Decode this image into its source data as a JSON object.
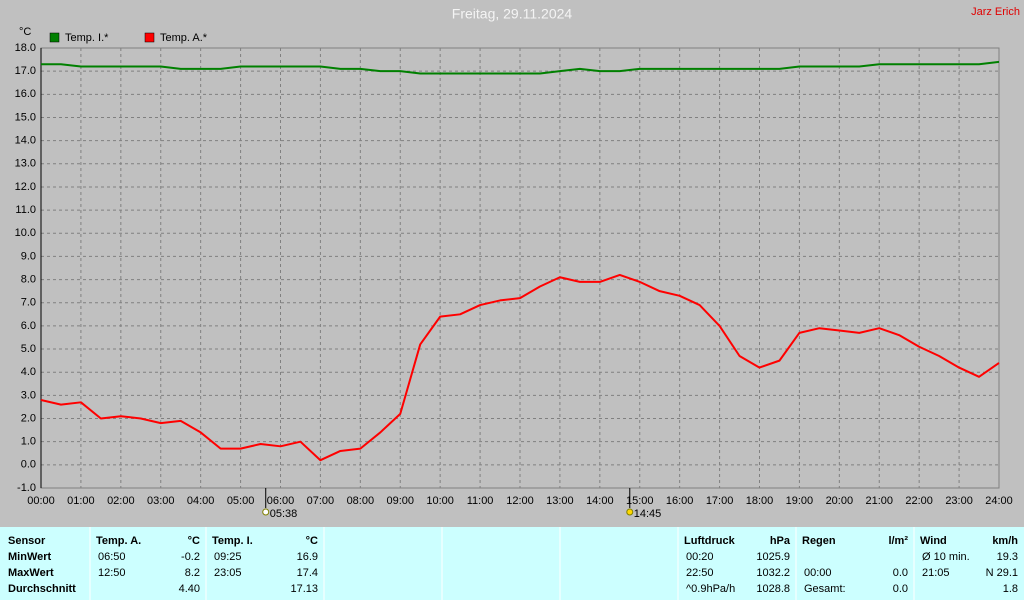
{
  "chart_data": {
    "type": "line",
    "title": "Freitag, 29.11.2024",
    "author": "Jarz Erich",
    "y_unit": "°C",
    "x": [
      0,
      0.5,
      1,
      1.5,
      2,
      2.5,
      3,
      3.5,
      4,
      4.5,
      5,
      5.5,
      6,
      6.5,
      7,
      7.5,
      8,
      8.5,
      9,
      9.5,
      10,
      10.5,
      11,
      11.5,
      12,
      12.5,
      13,
      13.5,
      14,
      14.5,
      15,
      15.5,
      16,
      16.5,
      17,
      17.5,
      18,
      18.5,
      19,
      19.5,
      20,
      20.5,
      21,
      21.5,
      22,
      22.5,
      23,
      23.5,
      24
    ],
    "series": [
      {
        "name": "Temp. I.*",
        "color": "#008000",
        "values": [
          17.3,
          17.3,
          17.2,
          17.2,
          17.2,
          17.2,
          17.2,
          17.1,
          17.1,
          17.1,
          17.2,
          17.2,
          17.2,
          17.2,
          17.2,
          17.1,
          17.1,
          17.0,
          17.0,
          16.9,
          16.9,
          16.9,
          16.9,
          16.9,
          16.9,
          16.9,
          17.0,
          17.1,
          17.0,
          17.0,
          17.1,
          17.1,
          17.1,
          17.1,
          17.1,
          17.1,
          17.1,
          17.1,
          17.2,
          17.2,
          17.2,
          17.2,
          17.3,
          17.3,
          17.3,
          17.3,
          17.3,
          17.3,
          17.4
        ]
      },
      {
        "name": "Temp. A.*",
        "color": "#ff0000",
        "values": [
          2.8,
          2.6,
          2.7,
          2.0,
          2.1,
          2.0,
          1.8,
          1.9,
          1.4,
          0.7,
          0.7,
          0.9,
          0.8,
          1.0,
          0.2,
          0.6,
          0.7,
          1.4,
          2.2,
          5.2,
          6.4,
          6.5,
          6.9,
          7.1,
          7.2,
          7.7,
          8.1,
          7.9,
          7.9,
          8.2,
          7.9,
          7.5,
          7.3,
          6.9,
          6.0,
          4.7,
          4.2,
          4.5,
          5.7,
          5.9,
          5.8,
          5.7,
          5.9,
          5.6,
          5.1,
          4.7,
          4.2,
          3.8,
          4.4
        ]
      }
    ],
    "xlim": [
      0,
      24
    ],
    "ylim": [
      -1,
      18
    ],
    "xticks": [
      {
        "value": 0,
        "label": "00:00"
      },
      {
        "value": 1,
        "label": "01:00"
      },
      {
        "value": 2,
        "label": "02:00"
      },
      {
        "value": 3,
        "label": "03:00"
      },
      {
        "value": 4,
        "label": "04:00"
      },
      {
        "value": 5,
        "label": "05:00"
      },
      {
        "value": 6,
        "label": "06:00"
      },
      {
        "value": 7,
        "label": "07:00"
      },
      {
        "value": 8,
        "label": "08:00"
      },
      {
        "value": 9,
        "label": "09:00"
      },
      {
        "value": 10,
        "label": "10:00"
      },
      {
        "value": 11,
        "label": "11:00"
      },
      {
        "value": 12,
        "label": "12:00"
      },
      {
        "value": 13,
        "label": "13:00"
      },
      {
        "value": 14,
        "label": "14:00"
      },
      {
        "value": 15,
        "label": "15:00"
      },
      {
        "value": 16,
        "label": "16:00"
      },
      {
        "value": 17,
        "label": "17:00"
      },
      {
        "value": 18,
        "label": "18:00"
      },
      {
        "value": 19,
        "label": "19:00"
      },
      {
        "value": 20,
        "label": "20:00"
      },
      {
        "value": 21,
        "label": "21:00"
      },
      {
        "value": 22,
        "label": "22:00"
      },
      {
        "value": 23,
        "label": "23:00"
      },
      {
        "value": 24,
        "label": "24:00"
      }
    ],
    "yticks": [
      {
        "value": -1,
        "label": "-1.0"
      },
      {
        "value": 0,
        "label": "0.0"
      },
      {
        "value": 1,
        "label": "1.0"
      },
      {
        "value": 2,
        "label": "2.0"
      },
      {
        "value": 3,
        "label": "3.0"
      },
      {
        "value": 4,
        "label": "4.0"
      },
      {
        "value": 5,
        "label": "5.0"
      },
      {
        "value": 6,
        "label": "6.0"
      },
      {
        "value": 7,
        "label": "7.0"
      },
      {
        "value": 8,
        "label": "8.0"
      },
      {
        "value": 9,
        "label": "9.0"
      },
      {
        "value": 10,
        "label": "10.0"
      },
      {
        "value": 11,
        "label": "11.0"
      },
      {
        "value": 12,
        "label": "12.0"
      },
      {
        "value": 13,
        "label": "13.0"
      },
      {
        "value": 14,
        "label": "14.0"
      },
      {
        "value": 15,
        "label": "15.0"
      },
      {
        "value": 16,
        "label": "16.0"
      },
      {
        "value": 17,
        "label": "17.0"
      },
      {
        "value": 18,
        "label": "18.0"
      }
    ],
    "grid": true,
    "annotations": [
      {
        "x": 5.63,
        "label": "05:38"
      },
      {
        "x": 14.75,
        "label": "14:45"
      }
    ]
  },
  "stats": {
    "labels": [
      "Sensor",
      "MinWert",
      "MaxWert",
      "Durchschnitt"
    ],
    "sections": [
      {
        "title": "Temp. A.",
        "unit": "°C",
        "rows": [
          [
            "06:50",
            "-0.2"
          ],
          [
            "12:50",
            "8.2"
          ],
          [
            null,
            "4.40"
          ]
        ]
      },
      {
        "title": "Temp. I.",
        "unit": "°C",
        "rows": [
          [
            "09:25",
            "16.9"
          ],
          [
            "23:05",
            "17.4"
          ],
          [
            null,
            "17.13"
          ]
        ]
      },
      {
        "title": "Luftdruck",
        "unit": "hPa",
        "rows": [
          [
            "00:20",
            "1025.9"
          ],
          [
            "22:50",
            "1032.2"
          ],
          [
            "^0.9hPa/h",
            "1028.8"
          ]
        ]
      },
      {
        "title": "Regen",
        "unit": "l/m²",
        "rows": [
          [
            null,
            null
          ],
          [
            "00:00",
            "0.0"
          ],
          [
            "Gesamt:",
            "0.0"
          ]
        ]
      },
      {
        "title": "Wind",
        "unit": "km/h",
        "rows": [
          [
            "Ø 10 min.",
            "19.3"
          ],
          [
            "21:05",
            "N 29.1"
          ],
          [
            null,
            "1.8"
          ]
        ]
      }
    ]
  }
}
